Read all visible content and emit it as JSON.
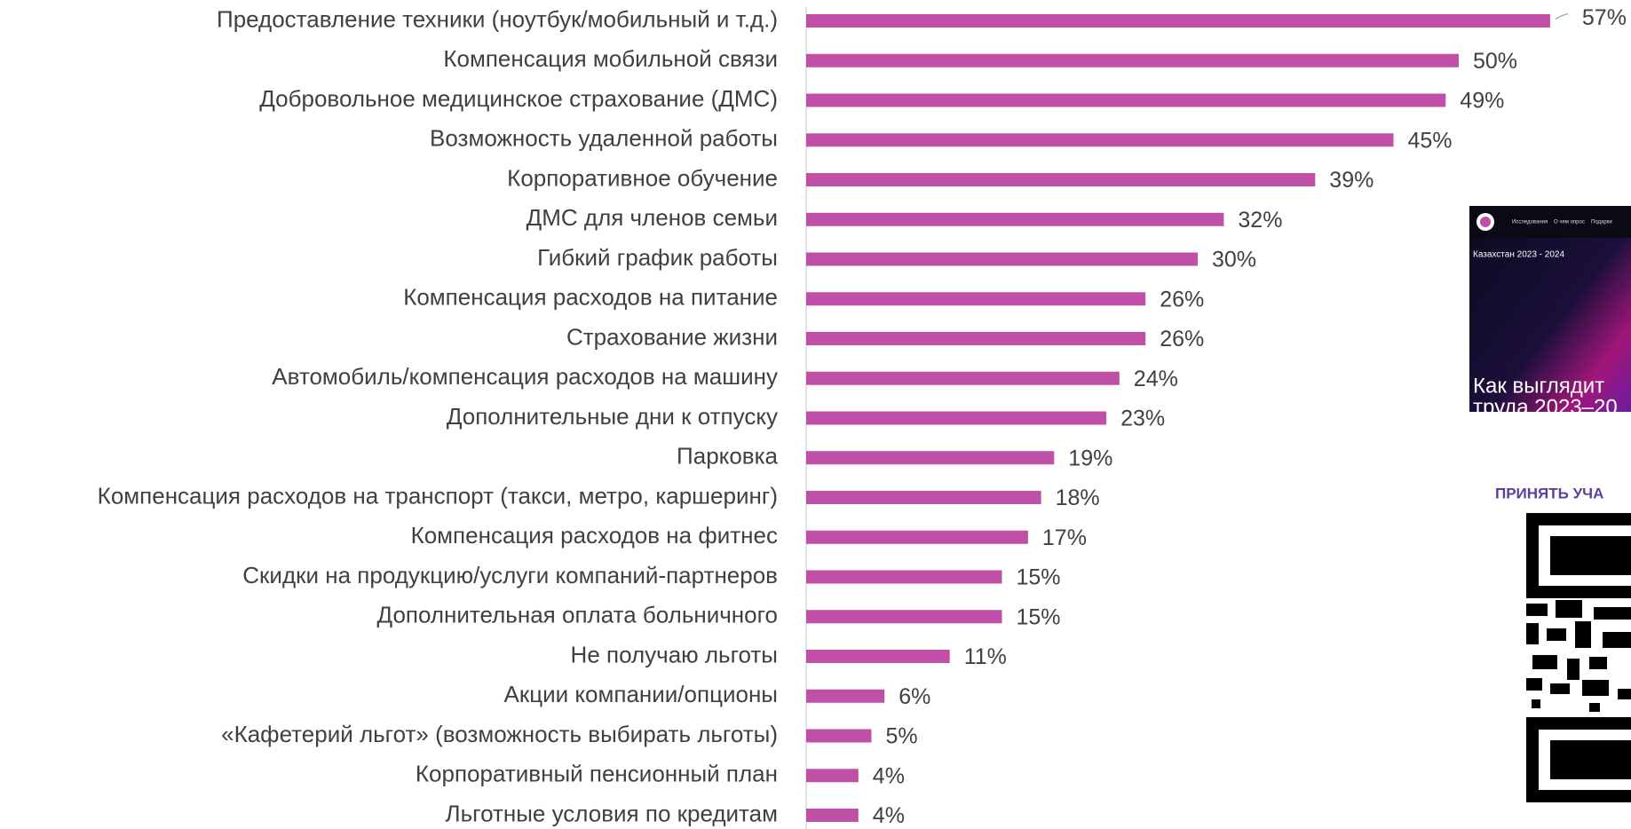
{
  "chart_data": {
    "type": "barh",
    "categories": [
      "Предоставление техники (ноутбук/мобильный и т.д.)",
      "Компенсация мобильной связи",
      "Добровольное медицинское страхование (ДМС)",
      "Возможность удаленной работы",
      "Корпоративное обучение",
      "ДМС для членов семьи",
      "Гибкий график работы",
      "Компенсация расходов на питание",
      "Страхование жизни",
      "Автомобиль/компенсация расходов на машину",
      "Дополнительные дни к отпуску",
      "Парковка",
      "Компенсация расходов на транспорт (такси, метро, каршеринг)",
      "Компенсация расходов на фитнес",
      "Скидки на продукцию/услуги компаний-партнеров",
      "Дополнительная оплата больничного",
      "Не получаю льготы",
      "Акции компании/опционы",
      "«Кафетерий льгот» (возможность выбирать льготы)",
      "Корпоративный пенсионный план",
      "Льготные условия по кредитам"
    ],
    "values": [
      57,
      50,
      49,
      45,
      39,
      32,
      30,
      26,
      26,
      24,
      23,
      19,
      18,
      17,
      15,
      15,
      11,
      6,
      5,
      4,
      4
    ],
    "value_labels": [
      "57%",
      "50%",
      "49%",
      "45%",
      "39%",
      "32%",
      "30%",
      "26%",
      "26%",
      "24%",
      "23%",
      "19%",
      "18%",
      "17%",
      "15%",
      "15%",
      "11%",
      "6%",
      "5%",
      "4%",
      "4%"
    ],
    "color": "#c04fa8",
    "xlim": [
      0,
      60
    ]
  },
  "promo": {
    "nav": [
      "Исследования",
      "О чем опрос",
      "Подарки"
    ],
    "caption": "Казахстан  2023 - 2024",
    "headline": [
      "Как выглядит",
      "труда 2023–20"
    ],
    "button": "ПРИНЯТЬ УЧА"
  }
}
